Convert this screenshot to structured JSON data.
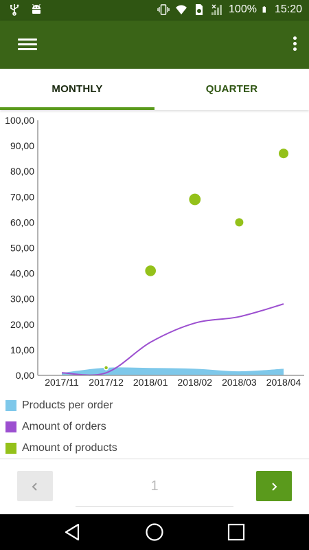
{
  "status_bar": {
    "battery": "100%",
    "time": "15:20",
    "icons": [
      "usb-icon",
      "android-icon",
      "vibrate-icon",
      "wifi-icon",
      "sim-icon",
      "signal-icon",
      "battery-icon"
    ]
  },
  "app_bar": {
    "menu_icon": "menu-icon",
    "overflow_icon": "overflow-icon"
  },
  "tabs": [
    {
      "label": "MONTHLY",
      "selected": true
    },
    {
      "label": "QUARTER",
      "selected": false
    }
  ],
  "chart_data": {
    "type": "line",
    "categories": [
      "2017/11",
      "2017/12",
      "2018/01",
      "2018/02",
      "2018/03",
      "2018/04"
    ],
    "y_ticks": [
      "0,00",
      "10,00",
      "20,00",
      "30,00",
      "40,00",
      "50,00",
      "60,00",
      "70,00",
      "80,00",
      "90,00",
      "100,00"
    ],
    "ylim": [
      0,
      100
    ],
    "grid": false,
    "legend_position": "bottom",
    "series": [
      {
        "name": "Products per order",
        "type": "area",
        "color": "#7ec8ea",
        "values": [
          1.0,
          3.0,
          2.9,
          2.6,
          1.6,
          2.6
        ]
      },
      {
        "name": "Amount of orders",
        "type": "line",
        "color": "#9c4fd0",
        "values": [
          1.0,
          1.0,
          13.0,
          20.5,
          23.0,
          28.0
        ]
      },
      {
        "name": "Amount of products",
        "type": "scatter",
        "color": "#94c11a",
        "values": [
          0,
          3.0,
          41.0,
          69.0,
          60.0,
          87.0
        ],
        "sizes": [
          0,
          1.5,
          3.9,
          4.2,
          3.0,
          3.5
        ]
      }
    ]
  },
  "legend": [
    {
      "label": "Products per order",
      "color": "#7ec8ea"
    },
    {
      "label": "Amount of orders",
      "color": "#9c4fd0"
    },
    {
      "label": "Amount of products",
      "color": "#94c11a"
    }
  ],
  "pager": {
    "page": "1",
    "prev_icon": "chevron-left-icon",
    "next_icon": "chevron-right-icon"
  },
  "nav_bar": {
    "back_icon": "back-icon",
    "home_icon": "home-icon",
    "recents_icon": "recents-icon"
  }
}
